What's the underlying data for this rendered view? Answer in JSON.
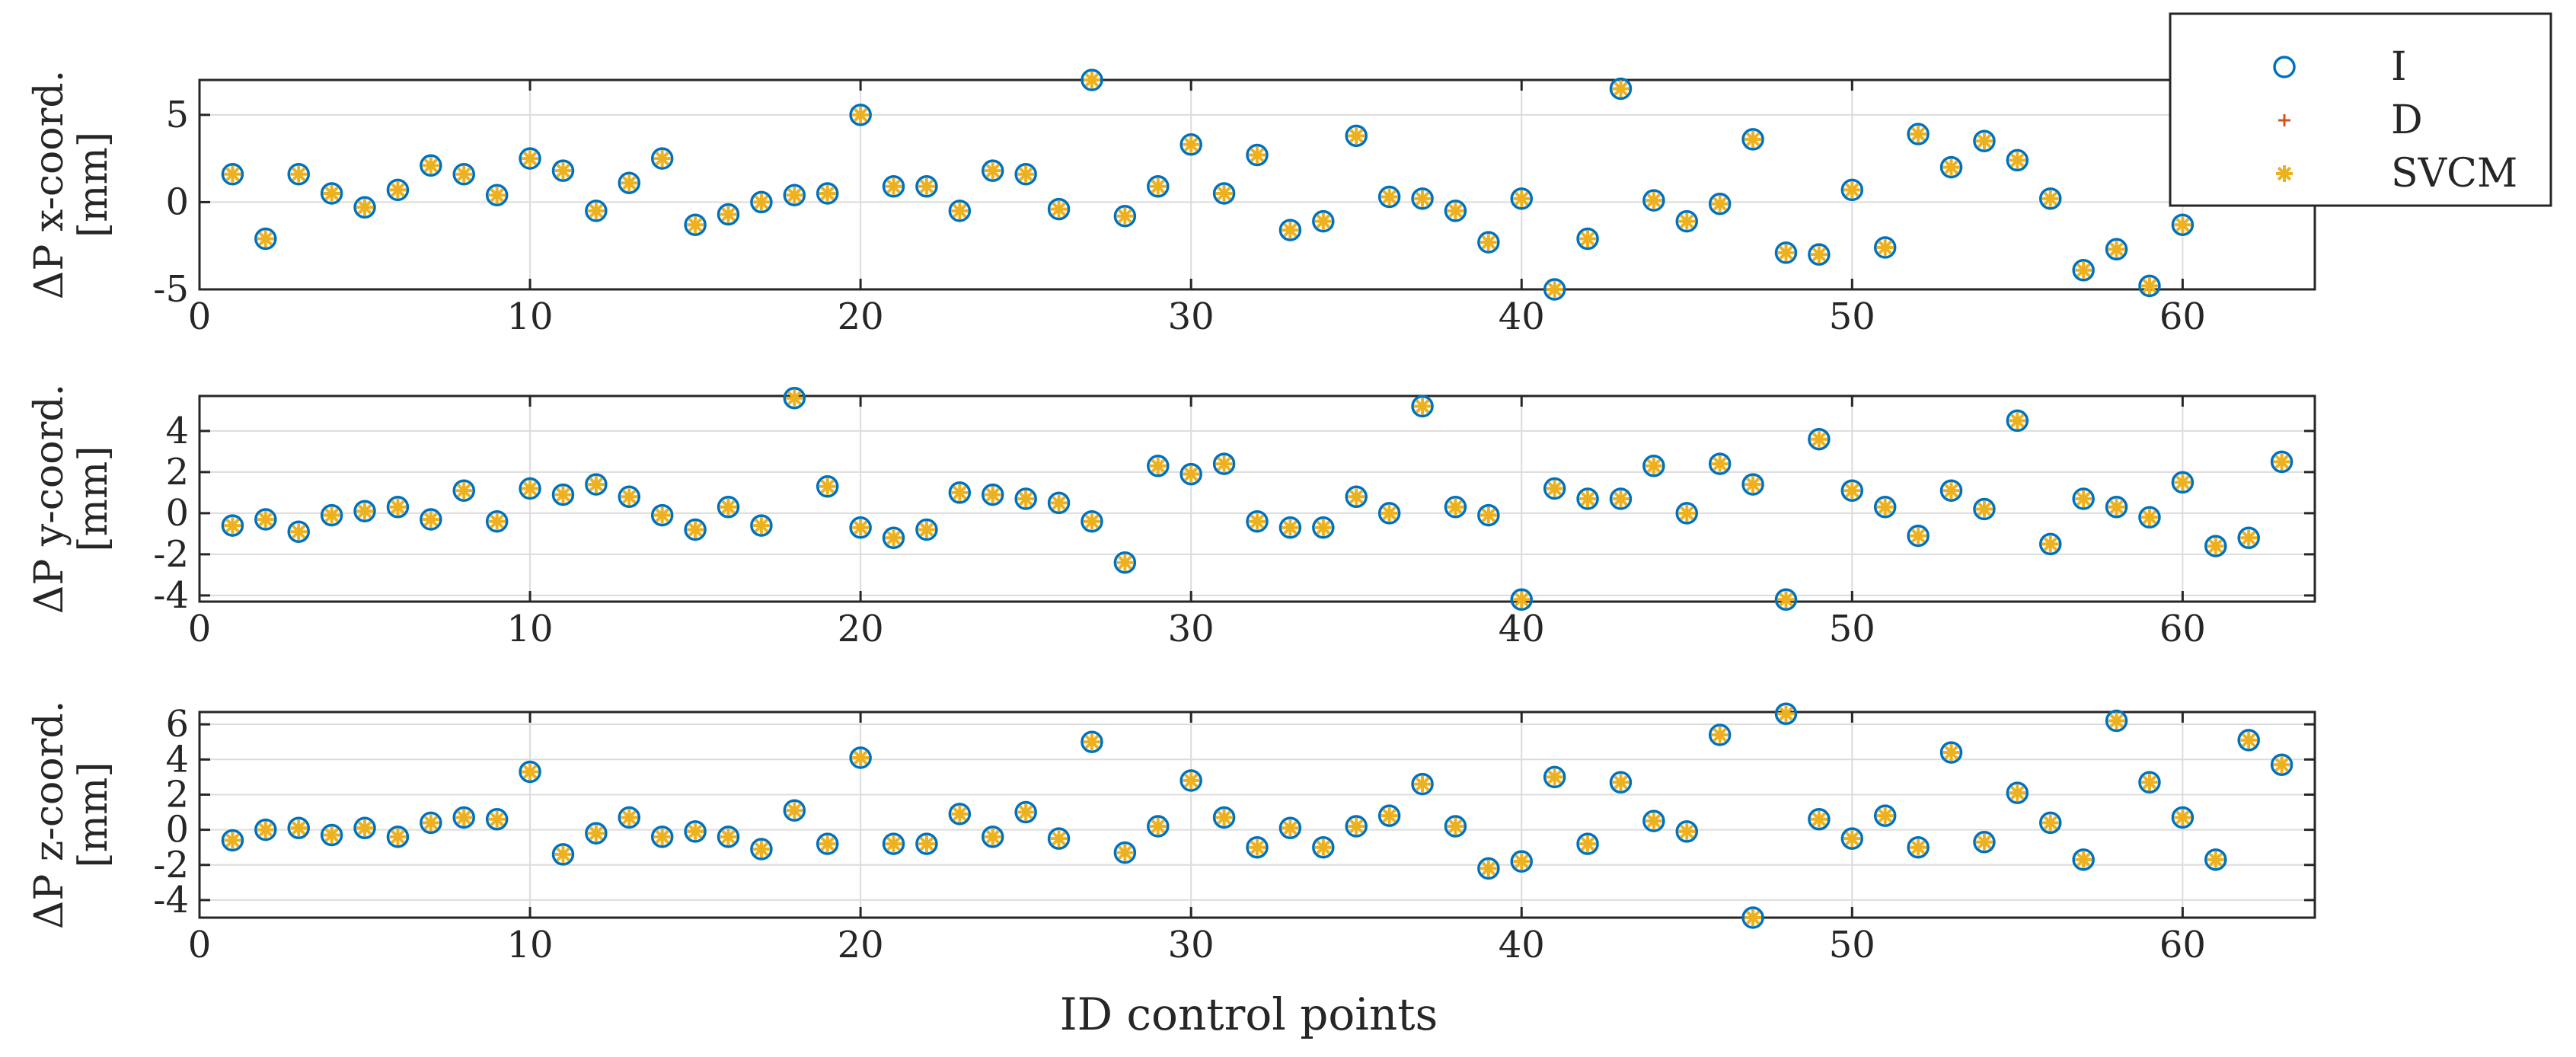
{
  "figure": {
    "xlabel": "ID control points"
  },
  "colors": {
    "marker_I": "#0072BD",
    "marker_D": "#D95319",
    "marker_SVCM": "#EDB120",
    "axis": "#262626",
    "grid": "#dcdcdc"
  },
  "legend": {
    "placement": "top-right",
    "entries": [
      {
        "label": "I",
        "marker": "circle"
      },
      {
        "label": "D",
        "marker": "plus"
      },
      {
        "label": "SVCM",
        "marker": "asterisk"
      }
    ]
  },
  "chart_data": [
    {
      "type": "scatter",
      "ylabel_line1": "ΔP x-coord.",
      "ylabel_line2": "[mm]",
      "xlim": [
        0,
        64
      ],
      "ylim": [
        -5,
        7
      ],
      "xticks": [
        0,
        10,
        20,
        30,
        40,
        50,
        60
      ],
      "xticklabels": [
        "0",
        "10",
        "20",
        "30",
        "40",
        "50",
        "60"
      ],
      "yticks": [
        -5,
        0,
        5
      ],
      "yticklabels": [
        "-5",
        "0",
        "5"
      ],
      "grid": true,
      "x": [
        1,
        2,
        3,
        4,
        5,
        6,
        7,
        8,
        9,
        10,
        11,
        12,
        13,
        14,
        15,
        16,
        17,
        18,
        19,
        20,
        21,
        22,
        23,
        24,
        25,
        26,
        27,
        28,
        29,
        30,
        31,
        32,
        33,
        34,
        35,
        36,
        37,
        38,
        39,
        40,
        41,
        42,
        43,
        44,
        45,
        46,
        47,
        48,
        49,
        50,
        51,
        52,
        53,
        54,
        55,
        56,
        57,
        58,
        59,
        60
      ],
      "series": [
        {
          "name": "I",
          "y": [
            1.6,
            -2.1,
            1.6,
            0.5,
            -0.3,
            0.7,
            2.1,
            1.6,
            0.4,
            2.5,
            1.8,
            -0.5,
            1.1,
            2.5,
            -1.3,
            -0.7,
            0.0,
            0.4,
            0.5,
            5.0,
            0.9,
            0.9,
            -0.5,
            1.8,
            1.6,
            -0.4,
            7.0,
            -0.8,
            0.9,
            3.3,
            0.5,
            2.7,
            -1.6,
            -1.1,
            3.8,
            0.3,
            0.2,
            -0.5,
            -2.3,
            0.2,
            -5.0,
            -2.1,
            6.5,
            0.1,
            -1.1,
            -0.1,
            3.6,
            -2.9,
            -3.0,
            0.7,
            -2.6,
            3.9,
            2.0,
            3.5,
            2.4,
            0.2,
            -3.9,
            -2.7,
            -4.8,
            -1.3
          ]
        },
        {
          "name": "D",
          "y": [
            1.6,
            -2.1,
            1.6,
            0.5,
            -0.3,
            0.7,
            2.1,
            1.6,
            0.4,
            2.5,
            1.8,
            -0.5,
            1.1,
            2.5,
            -1.3,
            -0.7,
            0.0,
            0.4,
            0.5,
            5.0,
            0.9,
            0.9,
            -0.5,
            1.8,
            1.6,
            -0.4,
            7.0,
            -0.8,
            0.9,
            3.3,
            0.5,
            2.7,
            -1.6,
            -1.1,
            3.8,
            0.3,
            0.2,
            -0.5,
            -2.3,
            0.2,
            -5.0,
            -2.1,
            6.5,
            0.1,
            -1.1,
            -0.1,
            3.6,
            -2.9,
            -3.0,
            0.7,
            -2.6,
            3.9,
            2.0,
            3.5,
            2.4,
            0.2,
            -3.9,
            -2.7,
            -4.8,
            -1.3
          ]
        },
        {
          "name": "SVCM",
          "y": [
            1.6,
            -2.1,
            1.6,
            0.5,
            -0.3,
            0.7,
            2.1,
            1.6,
            0.4,
            2.5,
            1.8,
            -0.5,
            1.1,
            2.5,
            -1.3,
            -0.7,
            0.0,
            0.4,
            0.5,
            5.0,
            0.9,
            0.9,
            -0.5,
            1.8,
            1.6,
            -0.4,
            7.0,
            -0.8,
            0.9,
            3.3,
            0.5,
            2.7,
            -1.6,
            -1.1,
            3.8,
            0.3,
            0.2,
            -0.5,
            -2.3,
            0.2,
            -5.0,
            -2.1,
            6.5,
            0.1,
            -1.1,
            -0.1,
            3.6,
            -2.9,
            -3.0,
            0.7,
            -2.6,
            3.9,
            2.0,
            3.5,
            2.4,
            0.2,
            -3.9,
            -2.7,
            -4.8,
            -1.3
          ]
        }
      ]
    },
    {
      "type": "scatter",
      "ylabel_line1": "ΔP y-coord.",
      "ylabel_line2": "[mm]",
      "xlim": [
        0,
        64
      ],
      "ylim": [
        -4.3,
        5.7
      ],
      "xticks": [
        0,
        10,
        20,
        30,
        40,
        50,
        60
      ],
      "xticklabels": [
        "0",
        "10",
        "20",
        "30",
        "40",
        "50",
        "60"
      ],
      "yticks": [
        -4,
        -2,
        0,
        2,
        4
      ],
      "yticklabels": [
        "-4",
        "-2",
        "0",
        "2",
        "4"
      ],
      "grid": true,
      "x": [
        1,
        2,
        3,
        4,
        5,
        6,
        7,
        8,
        9,
        10,
        11,
        12,
        13,
        14,
        15,
        16,
        17,
        18,
        19,
        20,
        21,
        22,
        23,
        24,
        25,
        26,
        27,
        28,
        29,
        30,
        31,
        32,
        33,
        34,
        35,
        36,
        37,
        38,
        39,
        40,
        41,
        42,
        43,
        44,
        45,
        46,
        47,
        48,
        49,
        50,
        51,
        52,
        53,
        54,
        55,
        56,
        57,
        58,
        59,
        60,
        61,
        62,
        63
      ],
      "series": [
        {
          "name": "I",
          "y": [
            -0.6,
            -0.3,
            -0.9,
            -0.1,
            0.1,
            0.3,
            -0.3,
            1.1,
            -0.4,
            1.2,
            0.9,
            1.4,
            0.8,
            -0.1,
            -0.8,
            0.3,
            -0.6,
            5.6,
            1.3,
            -0.7,
            -1.2,
            -0.8,
            1.0,
            0.9,
            0.7,
            0.5,
            -0.4,
            -2.4,
            2.3,
            1.9,
            2.4,
            -0.4,
            -0.7,
            -0.7,
            0.8,
            0.0,
            5.2,
            0.3,
            -0.1,
            -4.2,
            1.2,
            0.7,
            0.7,
            2.3,
            0.0,
            2.4,
            1.4,
            -4.2,
            3.6,
            1.1,
            0.3,
            -1.1,
            1.1,
            0.2,
            4.5,
            -1.5,
            0.7,
            0.3,
            -0.2,
            1.5,
            -1.6,
            -1.2,
            2.5
          ]
        },
        {
          "name": "D",
          "y": [
            -0.6,
            -0.3,
            -0.9,
            -0.1,
            0.1,
            0.3,
            -0.3,
            1.1,
            -0.4,
            1.2,
            0.9,
            1.4,
            0.8,
            -0.1,
            -0.8,
            0.3,
            -0.6,
            5.6,
            1.3,
            -0.7,
            -1.2,
            -0.8,
            1.0,
            0.9,
            0.7,
            0.5,
            -0.4,
            -2.4,
            2.3,
            1.9,
            2.4,
            -0.4,
            -0.7,
            -0.7,
            0.8,
            0.0,
            5.2,
            0.3,
            -0.1,
            -4.2,
            1.2,
            0.7,
            0.7,
            2.3,
            0.0,
            2.4,
            1.4,
            -4.2,
            3.6,
            1.1,
            0.3,
            -1.1,
            1.1,
            0.2,
            4.5,
            -1.5,
            0.7,
            0.3,
            -0.2,
            1.5,
            -1.6,
            -1.2,
            2.5
          ]
        },
        {
          "name": "SVCM",
          "y": [
            -0.6,
            -0.3,
            -0.9,
            -0.1,
            0.1,
            0.3,
            -0.3,
            1.1,
            -0.4,
            1.2,
            0.9,
            1.4,
            0.8,
            -0.1,
            -0.8,
            0.3,
            -0.6,
            5.6,
            1.3,
            -0.7,
            -1.2,
            -0.8,
            1.0,
            0.9,
            0.7,
            0.5,
            -0.4,
            -2.4,
            2.3,
            1.9,
            2.4,
            -0.4,
            -0.7,
            -0.7,
            0.8,
            0.0,
            5.2,
            0.3,
            -0.1,
            -4.2,
            1.2,
            0.7,
            0.7,
            2.3,
            0.0,
            2.4,
            1.4,
            -4.2,
            3.6,
            1.1,
            0.3,
            -1.1,
            1.1,
            0.2,
            4.5,
            -1.5,
            0.7,
            0.3,
            -0.2,
            1.5,
            -1.6,
            -1.2,
            2.5
          ]
        }
      ]
    },
    {
      "type": "scatter",
      "ylabel_line1": "ΔP z-coord.",
      "ylabel_line2": "[mm]",
      "xlim": [
        0,
        64
      ],
      "ylim": [
        -5,
        6.7
      ],
      "xticks": [
        0,
        10,
        20,
        30,
        40,
        50,
        60
      ],
      "xticklabels": [
        "0",
        "10",
        "20",
        "30",
        "40",
        "50",
        "60"
      ],
      "yticks": [
        -4,
        -2,
        0,
        2,
        4,
        6
      ],
      "yticklabels": [
        "-4",
        "-2",
        "0",
        "2",
        "4",
        "6"
      ],
      "grid": true,
      "x": [
        1,
        2,
        3,
        4,
        5,
        6,
        7,
        8,
        9,
        10,
        11,
        12,
        13,
        14,
        15,
        16,
        17,
        18,
        19,
        20,
        21,
        22,
        23,
        24,
        25,
        26,
        27,
        28,
        29,
        30,
        31,
        32,
        33,
        34,
        35,
        36,
        37,
        38,
        39,
        40,
        41,
        42,
        43,
        44,
        45,
        46,
        47,
        48,
        49,
        50,
        51,
        52,
        53,
        54,
        55,
        56,
        57,
        58,
        59,
        60,
        61,
        62,
        63
      ],
      "series": [
        {
          "name": "I",
          "y": [
            -0.6,
            0.0,
            0.1,
            -0.3,
            0.1,
            -0.4,
            0.4,
            0.7,
            0.6,
            3.3,
            -1.4,
            -0.2,
            0.7,
            -0.4,
            -0.1,
            -0.4,
            -1.1,
            1.1,
            -0.8,
            4.1,
            -0.8,
            -0.8,
            0.9,
            -0.4,
            1.0,
            -0.5,
            5.0,
            -1.3,
            0.2,
            2.8,
            0.7,
            -1.0,
            0.1,
            -1.0,
            0.2,
            0.8,
            2.6,
            0.2,
            -2.2,
            -1.8,
            3.0,
            -0.8,
            2.7,
            0.5,
            -0.1,
            5.4,
            -5.0,
            6.6,
            0.6,
            -0.5,
            0.8,
            -1.0,
            4.4,
            -0.7,
            2.1,
            0.4,
            -1.7,
            6.2,
            2.7,
            0.7,
            -1.7,
            5.1,
            3.7
          ]
        },
        {
          "name": "D",
          "y": [
            -0.6,
            0.0,
            0.1,
            -0.3,
            0.1,
            -0.4,
            0.4,
            0.7,
            0.6,
            3.3,
            -1.4,
            -0.2,
            0.7,
            -0.4,
            -0.1,
            -0.4,
            -1.1,
            1.1,
            -0.8,
            4.1,
            -0.8,
            -0.8,
            0.9,
            -0.4,
            1.0,
            -0.5,
            5.0,
            -1.3,
            0.2,
            2.8,
            0.7,
            -1.0,
            0.1,
            -1.0,
            0.2,
            0.8,
            2.6,
            0.2,
            -2.2,
            -1.8,
            3.0,
            -0.8,
            2.7,
            0.5,
            -0.1,
            5.4,
            -5.0,
            6.6,
            0.6,
            -0.5,
            0.8,
            -1.0,
            4.4,
            -0.7,
            2.1,
            0.4,
            -1.7,
            6.2,
            2.7,
            0.7,
            -1.7,
            5.1,
            3.7
          ]
        },
        {
          "name": "SVCM",
          "y": [
            -0.6,
            0.0,
            0.1,
            -0.3,
            0.1,
            -0.4,
            0.4,
            0.7,
            0.6,
            3.3,
            -1.4,
            -0.2,
            0.7,
            -0.4,
            -0.1,
            -0.4,
            -1.1,
            1.1,
            -0.8,
            4.1,
            -0.8,
            -0.8,
            0.9,
            -0.4,
            1.0,
            -0.5,
            5.0,
            -1.3,
            0.2,
            2.8,
            0.7,
            -1.0,
            0.1,
            -1.0,
            0.2,
            0.8,
            2.6,
            0.2,
            -2.2,
            -1.8,
            3.0,
            -0.8,
            2.7,
            0.5,
            -0.1,
            5.4,
            -5.0,
            6.6,
            0.6,
            -0.5,
            0.8,
            -1.0,
            4.4,
            -0.7,
            2.1,
            0.4,
            -1.7,
            6.2,
            2.7,
            0.7,
            -1.7,
            5.1,
            3.7
          ]
        }
      ]
    }
  ]
}
